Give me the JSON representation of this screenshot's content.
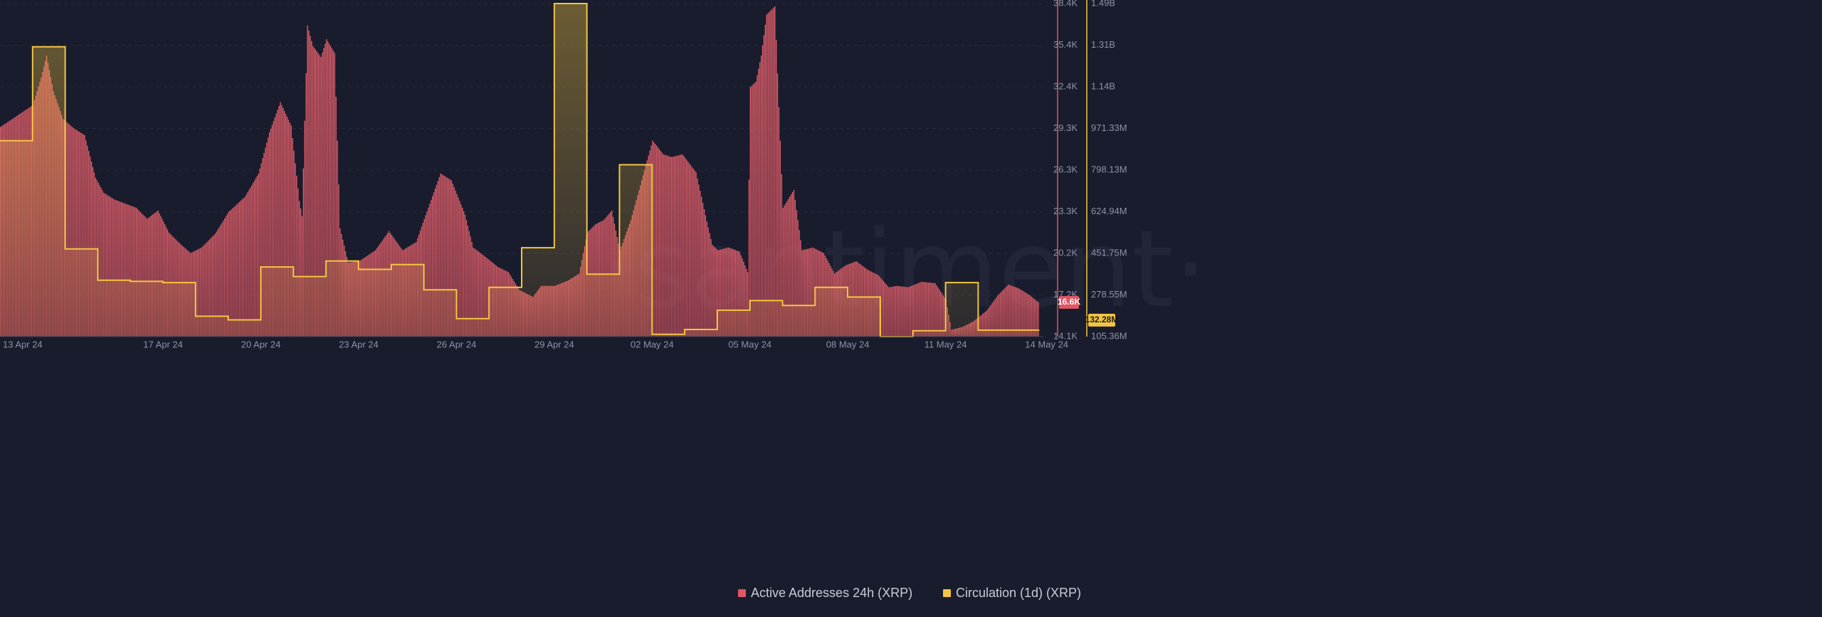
{
  "chart_data": {
    "type": "bar",
    "watermark": "·santiment·",
    "x_start": "12 Apr 24",
    "x_end": "14 May 24",
    "xticks": [
      "13 Apr 24",
      "17 Apr 24",
      "20 Apr 24",
      "23 Apr 24",
      "26 Apr 24",
      "29 Apr 24",
      "02 May 24",
      "05 May 24",
      "08 May 24",
      "11 May 24",
      "14 May 24"
    ],
    "y_left_ticks": [
      "14.1K",
      "17.2K",
      "20.2K",
      "23.3K",
      "26.3K",
      "29.3K",
      "32.4K",
      "35.4K",
      "38.4K"
    ],
    "y_left_range": [
      14100,
      38400
    ],
    "y_right_ticks": [
      "105.36M",
      "278.55M",
      "451.75M",
      "624.94M",
      "798.13M",
      "971.33M",
      "1.14B",
      "1.31B",
      "1.49B"
    ],
    "y_right_range": [
      105360000,
      1490000000
    ],
    "series": [
      {
        "name": "Active Addresses 24h (XRP)",
        "color": "#e25563",
        "last_value_label": "16.6K",
        "points": [
          [
            "12 Apr 24",
            29400
          ],
          [
            "12 Apr 24 12:00",
            30200
          ],
          [
            "13 Apr 24",
            31000
          ],
          [
            "13 Apr 24 06:00",
            33000
          ],
          [
            "13 Apr 24 10:00",
            34600
          ],
          [
            "13 Apr 24 15:00",
            32000
          ],
          [
            "13 Apr 24 22:00",
            30000
          ],
          [
            "14 Apr 24 06:00",
            29300
          ],
          [
            "14 Apr 24 14:00",
            28800
          ],
          [
            "14 Apr 24 22:00",
            25700
          ],
          [
            "15 Apr 24 04:00",
            24600
          ],
          [
            "15 Apr 24 12:00",
            24100
          ],
          [
            "15 Apr 24 20:00",
            23800
          ],
          [
            "16 Apr 24 04:00",
            23500
          ],
          [
            "16 Apr 24 12:00",
            22700
          ],
          [
            "16 Apr 24 20:00",
            23300
          ],
          [
            "17 Apr 24 04:00",
            21700
          ],
          [
            "17 Apr 24 12:00",
            20900
          ],
          [
            "17 Apr 24 20:00",
            20200
          ],
          [
            "18 Apr 24 04:00",
            20600
          ],
          [
            "18 Apr 24 14:00",
            21600
          ],
          [
            "19 Apr 24",
            23200
          ],
          [
            "19 Apr 24 12:00",
            24300
          ],
          [
            "19 Apr 24 22:00",
            26000
          ],
          [
            "20 Apr 24 06:00",
            29000
          ],
          [
            "20 Apr 24 14:00",
            31200
          ],
          [
            "20 Apr 24 22:00",
            29500
          ],
          [
            "21 Apr 24 04:00",
            24000
          ],
          [
            "21 Apr 24 06:00",
            22900
          ],
          [
            "21 Apr 24 10:00",
            36800
          ],
          [
            "21 Apr 24 14:00",
            35300
          ],
          [
            "21 Apr 24 20:00",
            34500
          ],
          [
            "22 Apr 24",
            35800
          ],
          [
            "22 Apr 24 06:00",
            34800
          ],
          [
            "22 Apr 24 10:00",
            22000
          ],
          [
            "22 Apr 24 16:00",
            19500
          ],
          [
            "23 Apr 24",
            19600
          ],
          [
            "23 Apr 24 12:00",
            20400
          ],
          [
            "23 Apr 24 22:00",
            21800
          ],
          [
            "24 Apr 24 08:00",
            20400
          ],
          [
            "24 Apr 24 18:00",
            21000
          ],
          [
            "25 Apr 24 04:00",
            23800
          ],
          [
            "25 Apr 24 12:00",
            26000
          ],
          [
            "25 Apr 24 20:00",
            25500
          ],
          [
            "26 Apr 24 06:00",
            23000
          ],
          [
            "26 Apr 24 12:00",
            20600
          ],
          [
            "26 Apr 24 20:00",
            20000
          ],
          [
            "27 Apr 24 06:00",
            19200
          ],
          [
            "27 Apr 24 14:00",
            18800
          ],
          [
            "27 Apr 24 22:00",
            17500
          ],
          [
            "28 Apr 24 08:00",
            17000
          ],
          [
            "28 Apr 24 14:00",
            17800
          ],
          [
            "29 Apr 24",
            17800
          ],
          [
            "29 Apr 24 10:00",
            18200
          ],
          [
            "29 Apr 24 18:00",
            18700
          ],
          [
            "30 Apr 24",
            21700
          ],
          [
            "30 Apr 24 06:00",
            22300
          ],
          [
            "30 Apr 24 12:00",
            22600
          ],
          [
            "30 Apr 24 18:00",
            23300
          ],
          [
            "01 May 24",
            20400
          ],
          [
            "01 May 24 08:00",
            22600
          ],
          [
            "01 May 24 16:00",
            25500
          ],
          [
            "02 May 24",
            28400
          ],
          [
            "02 May 24 08:00",
            27400
          ],
          [
            "02 May 24 14:00",
            27200
          ],
          [
            "02 May 24 22:00",
            27400
          ],
          [
            "03 May 24 08:00",
            26100
          ],
          [
            "03 May 24 16:00",
            22500
          ],
          [
            "03 May 24 20:00",
            20800
          ],
          [
            "04 May 24",
            20400
          ],
          [
            "04 May 24 08:00",
            20600
          ],
          [
            "04 May 24 16:00",
            20300
          ],
          [
            "04 May 24 22:00",
            18800
          ],
          [
            "05 May 24",
            32300
          ],
          [
            "05 May 24 04:00",
            32700
          ],
          [
            "05 May 24 08:00",
            34600
          ],
          [
            "05 May 24 12:00",
            37600
          ],
          [
            "05 May 24 18:00",
            38200
          ],
          [
            "06 May 24",
            23500
          ],
          [
            "06 May 24 08:00",
            24800
          ],
          [
            "06 May 24 14:00",
            20400
          ],
          [
            "06 May 24 22:00",
            20600
          ],
          [
            "07 May 24 06:00",
            20200
          ],
          [
            "07 May 24 14:00",
            18700
          ],
          [
            "07 May 24 22:00",
            19300
          ],
          [
            "08 May 24 06:00",
            19600
          ],
          [
            "08 May 24 14:00",
            19000
          ],
          [
            "08 May 24 22:00",
            18600
          ],
          [
            "09 May 24 06:00",
            17700
          ],
          [
            "09 May 24 12:00",
            17800
          ],
          [
            "09 May 24 20:00",
            17700
          ],
          [
            "10 May 24 06:00",
            18100
          ],
          [
            "10 May 24 16:00",
            18000
          ],
          [
            "11 May 24",
            16800
          ],
          [
            "11 May 24 04:00",
            14600
          ],
          [
            "11 May 24 12:00",
            14800
          ],
          [
            "11 May 24 20:00",
            15200
          ],
          [
            "12 May 24 06:00",
            16000
          ],
          [
            "12 May 24 14:00",
            17100
          ],
          [
            "12 May 24 22:00",
            17900
          ],
          [
            "13 May 24 06:00",
            17600
          ],
          [
            "13 May 24 14:00",
            17100
          ],
          [
            "13 May 24 20:00",
            16600
          ]
        ]
      },
      {
        "name": "Circulation (1d) (XRP)",
        "color": "#f4c542",
        "last_value_label": "132.28M",
        "steps": [
          [
            "12 Apr 24",
            920000000
          ],
          [
            "13 Apr 24",
            1310000000
          ],
          [
            "14 Apr 24",
            470000000
          ],
          [
            "15 Apr 24",
            340000000
          ],
          [
            "16 Apr 24",
            335000000
          ],
          [
            "17 Apr 24",
            330000000
          ],
          [
            "18 Apr 24",
            190000000
          ],
          [
            "19 Apr 24",
            175000000
          ],
          [
            "20 Apr 24",
            395000000
          ],
          [
            "21 Apr 24",
            355000000
          ],
          [
            "22 Apr 24",
            420000000
          ],
          [
            "23 Apr 24",
            385000000
          ],
          [
            "24 Apr 24",
            405000000
          ],
          [
            "25 Apr 24",
            300000000
          ],
          [
            "26 Apr 24",
            180000000
          ],
          [
            "27 Apr 24",
            310000000
          ],
          [
            "28 Apr 24",
            475000000
          ],
          [
            "29 Apr 24",
            1490000000
          ],
          [
            "30 Apr 24",
            365000000
          ],
          [
            "01 May 24",
            820000000
          ],
          [
            "02 May 24",
            115000000
          ],
          [
            "03 May 24",
            135000000
          ],
          [
            "04 May 24",
            215000000
          ],
          [
            "05 May 24",
            255000000
          ],
          [
            "06 May 24",
            235000000
          ],
          [
            "07 May 24",
            310000000
          ],
          [
            "08 May 24",
            270000000
          ],
          [
            "09 May 24",
            105360000
          ],
          [
            "10 May 24",
            130000000
          ],
          [
            "11 May 24",
            330000000
          ],
          [
            "12 May 24",
            132280000
          ],
          [
            "13 May 24",
            132280000
          ]
        ]
      }
    ],
    "colors": {
      "background": "#191c2c",
      "grid": "#272b3d",
      "left_axis": "#e25563",
      "right_axis": "#f4c542"
    }
  }
}
